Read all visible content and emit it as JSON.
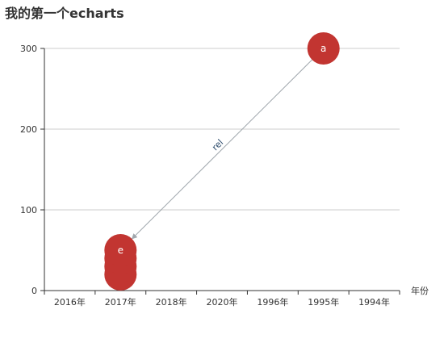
{
  "chart_data": {
    "type": "graph",
    "title": "我的第一个echarts",
    "x_axis": {
      "type": "category",
      "name": "年份",
      "categories": [
        "2016年",
        "2017年",
        "2018年",
        "2020年",
        "1996年",
        "1995年",
        "1994年"
      ]
    },
    "y_axis": {
      "type": "value",
      "ylim": [
        0,
        300
      ],
      "ticks": [
        0,
        100,
        200,
        300
      ]
    },
    "grid": true,
    "nodes": [
      {
        "label": "",
        "x": "2017年",
        "y": 20
      },
      {
        "label": "",
        "x": "2017年",
        "y": 30
      },
      {
        "label": "",
        "x": "2017年",
        "y": 40
      },
      {
        "label": "e",
        "x": "2017年",
        "y": 50
      },
      {
        "label": "a",
        "x": "1995年",
        "y": 300
      }
    ],
    "edges": [
      {
        "source": "a",
        "target": "e",
        "label": "rel"
      }
    ],
    "colors": {
      "node": "#c23531",
      "edge": "#a0a7ad",
      "axis": "#333333",
      "grid": "#cccccc"
    }
  }
}
